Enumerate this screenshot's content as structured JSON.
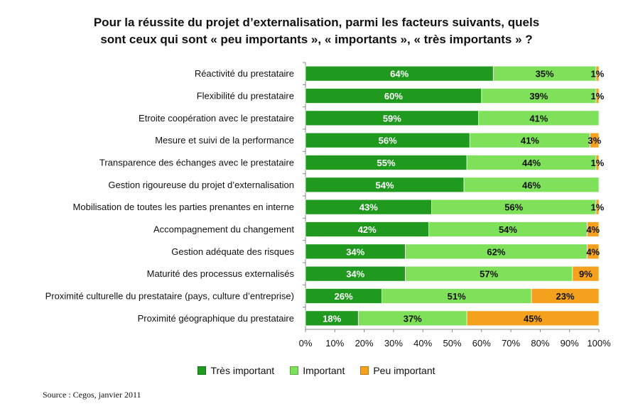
{
  "chart_data": {
    "type": "bar",
    "orientation": "horizontal",
    "stacked": true,
    "title_lines": [
      "Pour la réussite du projet d’externalisation, parmi les facteurs suivants, quels",
      "sont ceux qui sont « peu importants », « importants », « très importants » ?"
    ],
    "categories": [
      "Réactivité du prestataire",
      "Flexibilité du prestataire",
      "Etroite coopération avec le prestataire",
      "Mesure et suivi de la performance",
      "Transparence des échanges avec le prestataire",
      "Gestion rigoureuse du projet d’externalisation",
      "Mobilisation de toutes les parties prenantes en interne",
      "Accompagnement du changement",
      "Gestion adéquate des risques",
      "Maturité des processus externalisés",
      "Proximité culturelle du prestataire (pays, culture d’entreprise)",
      "Proximité géographique du prestataire"
    ],
    "series": [
      {
        "name": "Très important",
        "color": "#1f9a1f",
        "label_color": "#ffffff",
        "values": [
          64,
          60,
          59,
          56,
          55,
          54,
          43,
          42,
          34,
          34,
          26,
          18
        ]
      },
      {
        "name": "Important",
        "color": "#7fe05a",
        "label_color": "#111111",
        "values": [
          35,
          39,
          41,
          41,
          44,
          46,
          56,
          54,
          62,
          57,
          51,
          37
        ]
      },
      {
        "name": "Peu important",
        "color": "#f4a21e",
        "label_color": "#111111",
        "values": [
          1,
          1,
          0,
          3,
          1,
          0,
          1,
          4,
          4,
          9,
          23,
          45
        ]
      }
    ],
    "xlim": [
      0,
      100
    ],
    "x_ticks": [
      "0%",
      "10%",
      "20%",
      "30%",
      "40%",
      "50%",
      "60%",
      "70%",
      "80%",
      "90%",
      "100%"
    ],
    "value_suffix": "%",
    "legend_position": "bottom",
    "grid": false
  },
  "source": "Source : Cegos, janvier 2011"
}
